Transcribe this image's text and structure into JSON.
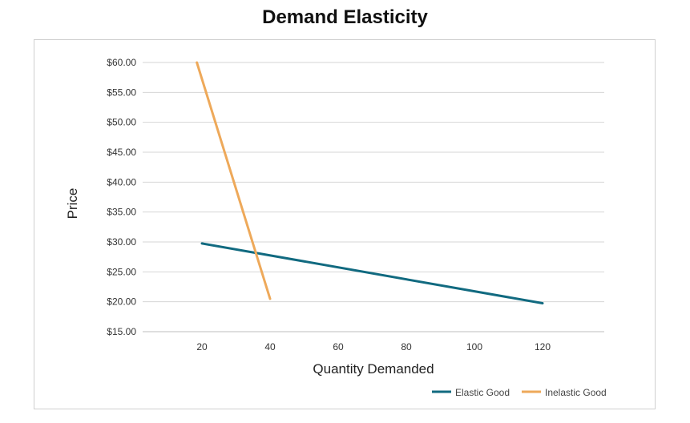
{
  "chart_data": {
    "type": "line",
    "title": "Demand Elasticity",
    "xlabel": "Quantity Demanded",
    "ylabel": "Price",
    "xticks": [
      "20",
      "40",
      "60",
      "80",
      "100",
      "120"
    ],
    "yticks": [
      "$15.00",
      "$20.00",
      "$25.00",
      "$30.00",
      "$35.00",
      "$40.00",
      "$45.00",
      "$50.00",
      "$55.00",
      "$60.00"
    ],
    "xlim": [
      0,
      140
    ],
    "ylim": [
      15,
      60
    ],
    "grid": "horizontal",
    "legend_position": "bottom-right",
    "series": [
      {
        "name": "Elastic Good",
        "color": "#116a80",
        "x": [
          20,
          120
        ],
        "y": [
          29.75,
          19.75
        ]
      },
      {
        "name": "Inelastic Good",
        "color": "#eea95a",
        "x": [
          18.5,
          40
        ],
        "y": [
          60,
          20.5
        ]
      }
    ]
  }
}
